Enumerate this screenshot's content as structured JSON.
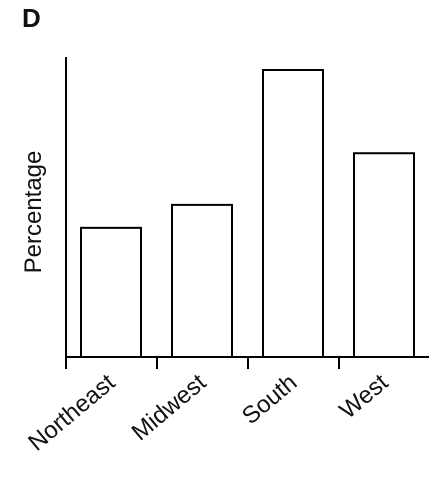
{
  "panel_label": "D",
  "chart_data": {
    "type": "bar",
    "title": "",
    "xlabel": "",
    "ylabel": "Percentage",
    "categories": [
      "Northeast",
      "Midwest",
      "South",
      "West"
    ],
    "values": [
      45,
      53,
      100,
      71
    ],
    "ylim": [
      0,
      100
    ],
    "y_ticks_shown": false,
    "grid": false,
    "legend": "none",
    "bar_fill": "#ffffff",
    "bar_stroke": "#000000"
  }
}
